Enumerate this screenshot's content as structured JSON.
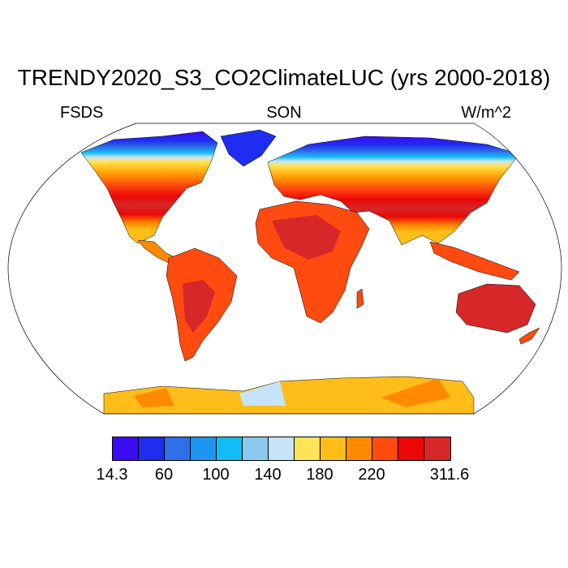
{
  "title": "TRENDY2020_S3_CO2ClimateLUC (yrs 2000-2018)",
  "left_label": "FSDS",
  "center_label": "SON",
  "right_label": "W/m^2",
  "colorbar": {
    "colors": [
      "#3a0df5",
      "#1e2df0",
      "#2f6fe8",
      "#1f95f2",
      "#12bdf7",
      "#8cc9ef",
      "#c7e3f7",
      "#ffe45a",
      "#ffbd1a",
      "#ff8a00",
      "#ff4a10",
      "#ea0808",
      "#d62828"
    ],
    "labels": [
      {
        "text": "14.3",
        "boundary": 0
      },
      {
        "text": "60",
        "boundary": 2
      },
      {
        "text": "100",
        "boundary": 4
      },
      {
        "text": "140",
        "boundary": 6
      },
      {
        "text": "180",
        "boundary": 8
      },
      {
        "text": "220",
        "boundary": 10
      },
      {
        "text": "311.6",
        "boundary": 13
      }
    ]
  }
}
